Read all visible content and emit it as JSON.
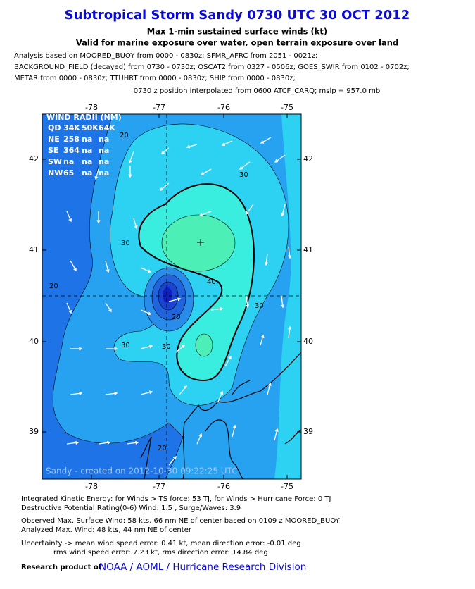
{
  "header": {
    "title": "Subtropical Storm Sandy 0730 UTC 30 OCT 2012",
    "subtitle": "Max 1-min sustained surface winds (kt)",
    "validity": "Valid for marine exposure over water, open terrain exposure over land",
    "sources": [
      "Analysis based on MOORED_BUOY from 0000 - 0830z; SFMR_AFRC from 2051 - 0021z;",
      "BACKGROUND_FIELD (decayed) from 0730 - 0730z; OSCAT2 from 0327 - 0506z; GOES_SWIR from 0102 - 0702z;",
      "METAR from 0000 - 0830z; TTUHRT from 0000 - 0830z; SHIP from 0000 - 0830z;"
    ],
    "position_note": "0730 z position interpolated from 0600 ATCF_CARQ; mslp = 957.0 mb"
  },
  "map": {
    "x_ticks": [
      "-78",
      "-77",
      "-76",
      "-75"
    ],
    "y_ticks": [
      "42",
      "41",
      "40",
      "39"
    ],
    "wind_radii": {
      "title": "WIND RADII (NM)",
      "header": [
        "QD",
        "34K",
        "50K",
        "64K"
      ],
      "rows": [
        [
          "NE",
          "258",
          "na",
          "na"
        ],
        [
          "SE",
          "364",
          "na",
          "na"
        ],
        [
          "SW",
          "na",
          "na",
          "na"
        ],
        [
          "NW",
          "65",
          "na",
          "na"
        ]
      ]
    },
    "contour_labels": [
      "20",
      "30",
      "30",
      "40",
      "30",
      "20",
      "20",
      "30",
      "30",
      "20"
    ],
    "credit": "Sandy - created on 2012-10-30 09:22:25 UTC"
  },
  "footer": {
    "ike": "Integrated Kinetic Energy: for Winds > TS force: 53 TJ, for Winds > Hurricane Force: 0 TJ",
    "dpr": "Destructive Potential Rating(0-6)  Wind: 1.5 , Surge/Waves: 3.9",
    "observed": "Observed Max. Surface Wind: 58 kts, 66 nm NE of center based on 0109 z MOORED_BUOY",
    "analyzed": "Analyzed Max. Wind: 48 kts, 44 nm  NE of center",
    "uncertainty": "Uncertainty -> mean wind speed error: 0.41 kt, mean direction error:  -0.01 deg",
    "rms": "rms wind speed error: 7.23 kt, rms direction error: 14.84 deg",
    "research_label": "Research product of",
    "research_org": "NOAA / AOML / Hurricane Research Division"
  }
}
